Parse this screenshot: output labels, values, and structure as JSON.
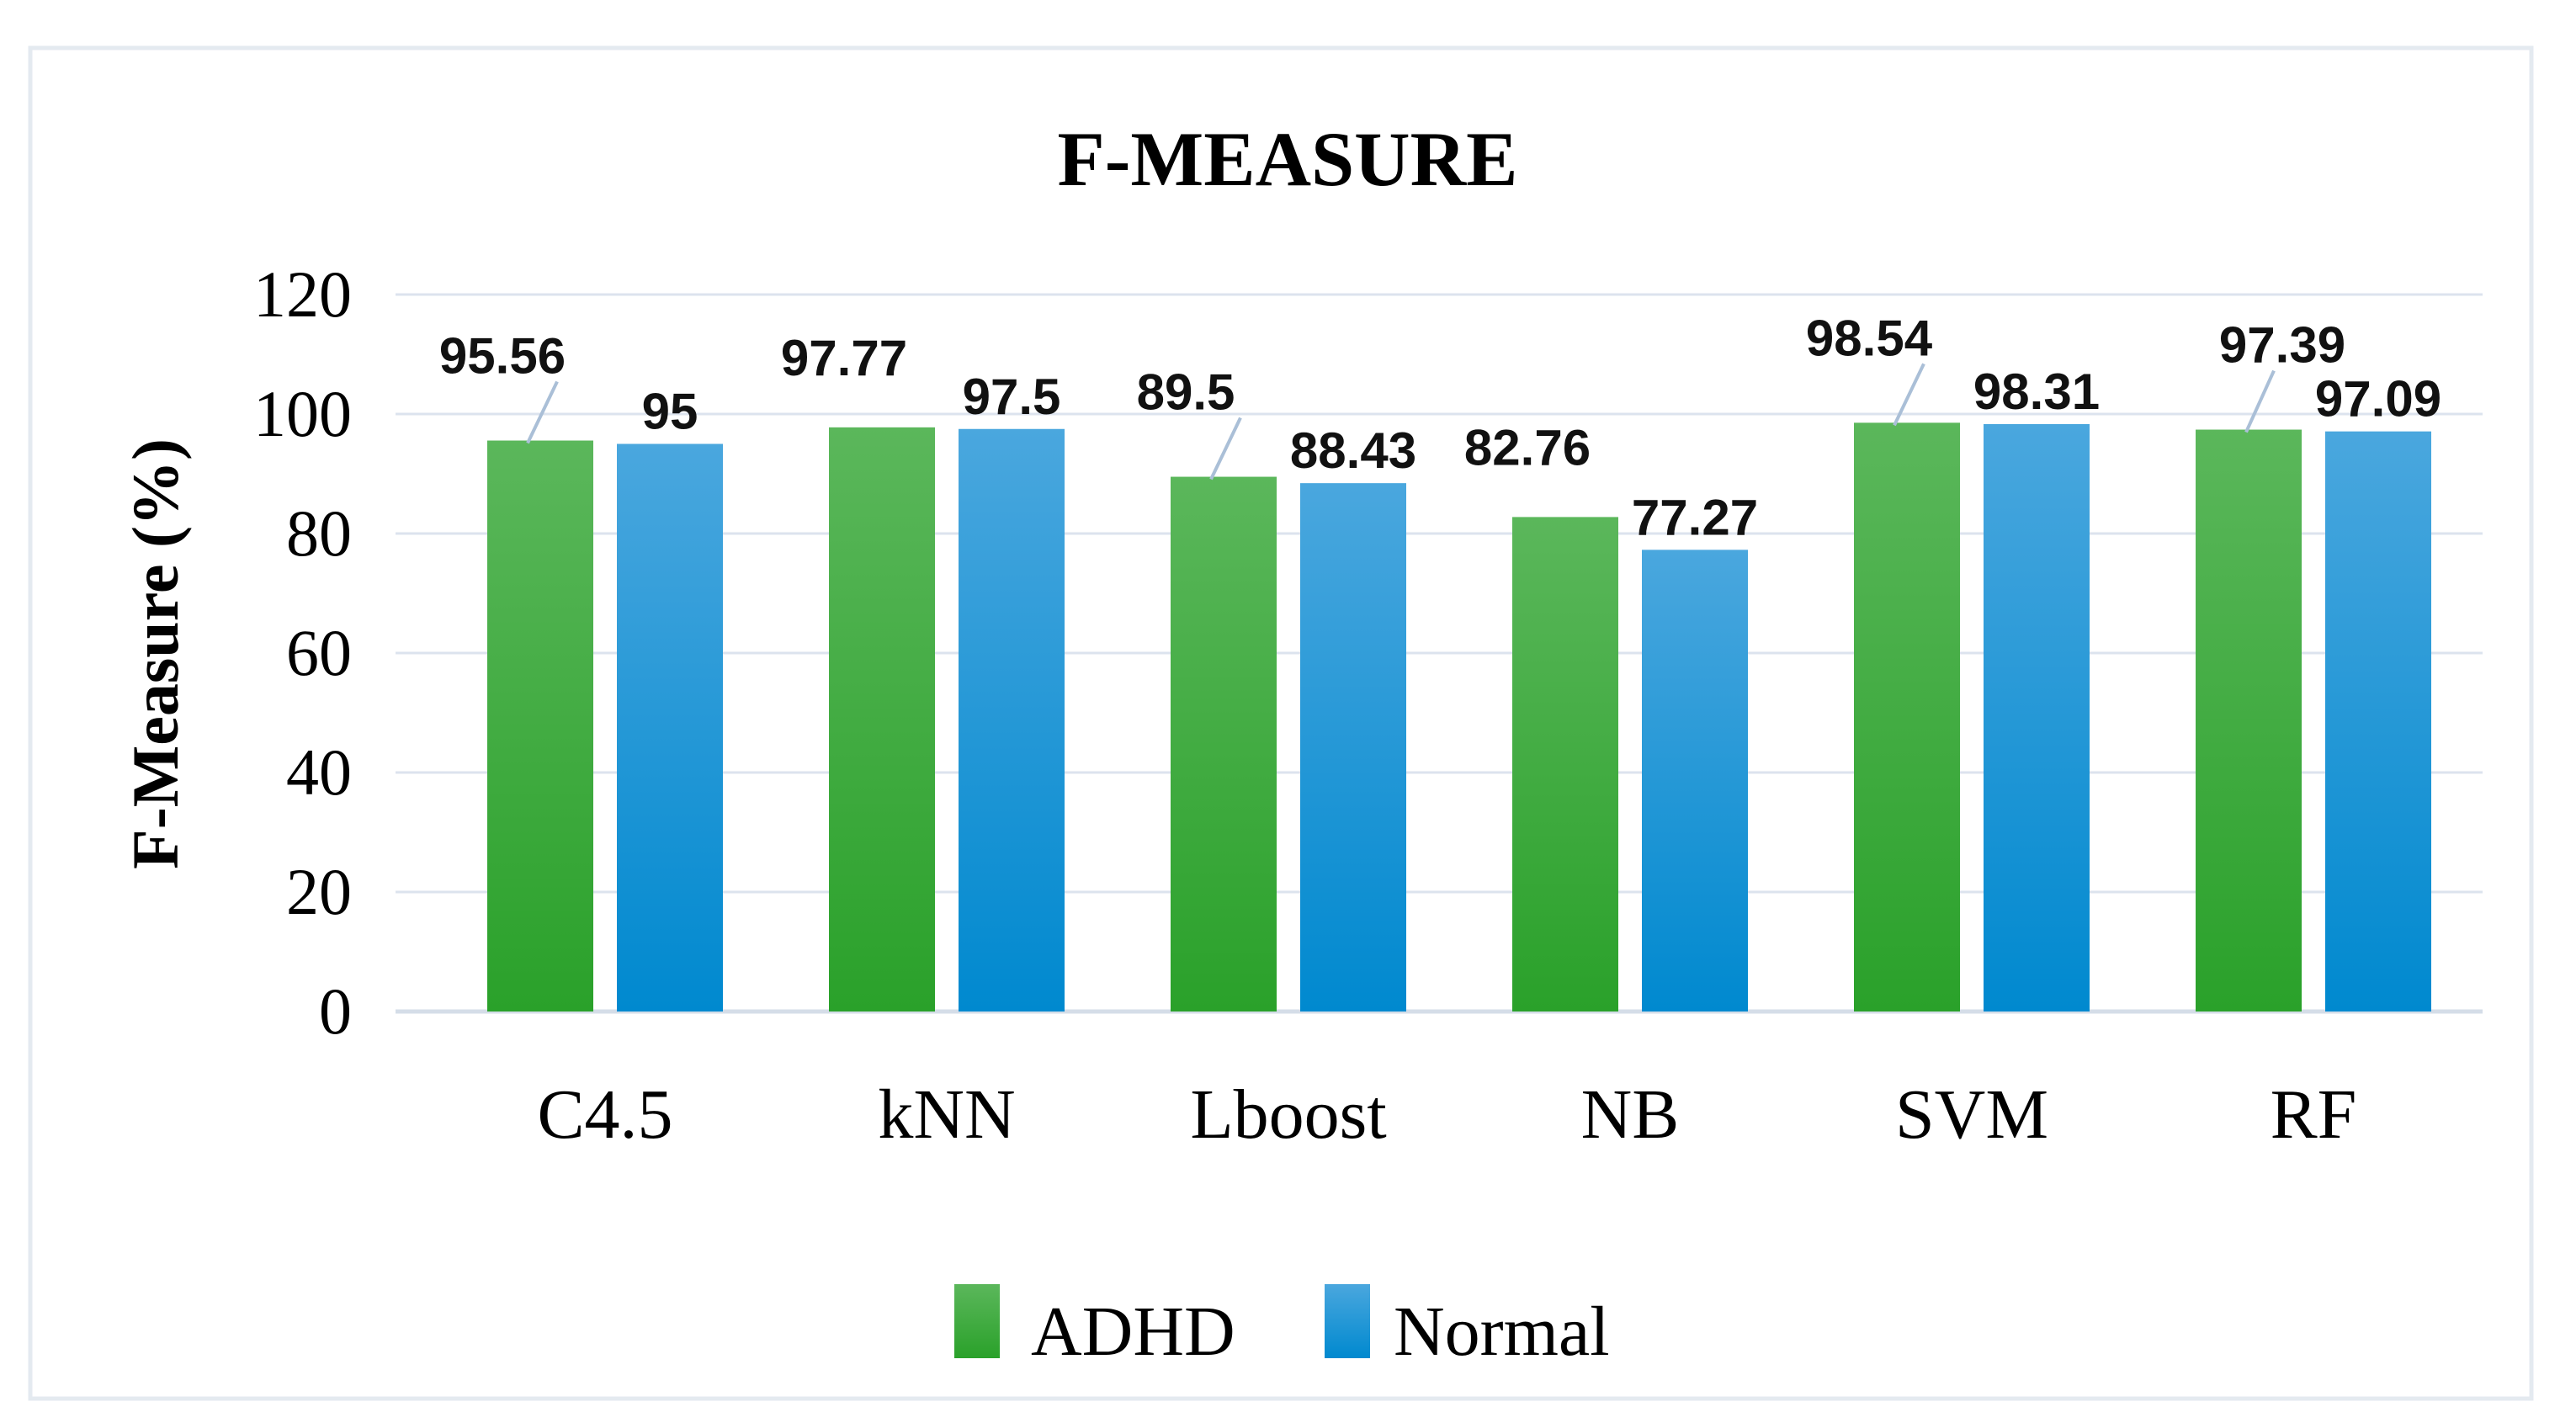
{
  "figure": {
    "title": "F-MEASURE",
    "background_color": "#ffffff",
    "frame_border_color": "#e4eaf0"
  },
  "chart_data": {
    "type": "bar",
    "title": "F-MEASURE",
    "xlabel": "",
    "ylabel": "F-Measure (%)",
    "categories": [
      "C4.5",
      "kNN",
      "Lboost",
      "NB",
      "SVM",
      "RF"
    ],
    "series": [
      {
        "name": "ADHD",
        "values": [
          95.56,
          97.77,
          89.5,
          82.76,
          98.54,
          97.39
        ],
        "labels": [
          "95.56",
          "97.77",
          "89.5",
          "82.76",
          "98.54",
          "97.39"
        ],
        "color_top": "#5bb75b",
        "color_bottom": "#2aa12a"
      },
      {
        "name": "Normal",
        "values": [
          95,
          97.5,
          88.43,
          77.27,
          98.31,
          97.09
        ],
        "labels": [
          "95",
          "97.5",
          "88.43",
          "77.27",
          "98.31",
          "97.09"
        ],
        "color_top": "#4aa7de",
        "color_bottom": "#0089cf"
      }
    ],
    "ylim": [
      0,
      120
    ],
    "ytick_step": 20,
    "yticks": [
      "0",
      "20",
      "40",
      "60",
      "80",
      "100",
      "120"
    ],
    "grid": true,
    "gridline_color": "#dce3ee",
    "axis_line_color": "#d5dde8",
    "leader_line_color": "#aabfd7",
    "legend_position": "bottom",
    "legend": [
      "ADHD",
      "Normal"
    ],
    "leader_line_categories": [
      "C4.5",
      "Lboost",
      "SVM",
      "RF"
    ]
  }
}
